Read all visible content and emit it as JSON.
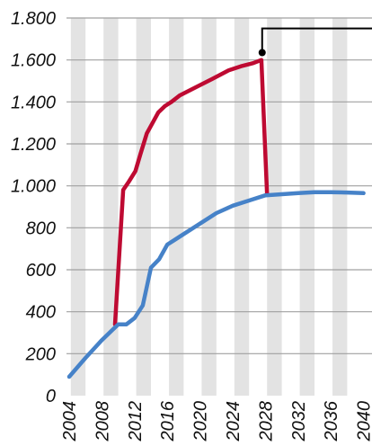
{
  "chart_data": {
    "type": "line",
    "title": "",
    "xlabel": "",
    "ylabel": "",
    "xlim": [
      2003,
      2040
    ],
    "ylim": [
      0,
      1800
    ],
    "x_ticks": [
      "2004",
      "2008",
      "2012",
      "2016",
      "2020",
      "2024",
      "2028",
      "2032",
      "2036",
      "2040"
    ],
    "y_ticks": [
      {
        "value": 0,
        "label": "0"
      },
      {
        "value": 200,
        "label": "200"
      },
      {
        "value": 400,
        "label": "400"
      },
      {
        "value": 600,
        "label": "600"
      },
      {
        "value": 800,
        "label": "800"
      },
      {
        "value": 1000,
        "label": "1.000"
      },
      {
        "value": 1200,
        "label": "1.200"
      },
      {
        "value": 1400,
        "label": "1.400"
      },
      {
        "value": 1600,
        "label": "1.600"
      },
      {
        "value": 1800,
        "label": "1.800"
      }
    ],
    "grid": "alternating vertical bands (light grey) with white gridlines",
    "colors": {
      "band": "#e3e3e3",
      "series_red": "#be0a32",
      "series_blue": "#4682c8",
      "axis_text": "#111111",
      "callout": "#000000"
    },
    "series": [
      {
        "color": "#be0a32",
        "x": [
          2009.6,
          2010.6,
          2011.3,
          2012.1,
          2012.7,
          2013.5,
          2014.2,
          2014.9,
          2015.7,
          2016.5,
          2017.5,
          2019.5,
          2021.5,
          2023.5,
          2025,
          2026.5,
          2027.5,
          2028.2
        ],
        "y": [
          340,
          980,
          1020,
          1070,
          1150,
          1250,
          1300,
          1350,
          1380,
          1400,
          1430,
          1470,
          1510,
          1550,
          1570,
          1585,
          1600,
          960
        ]
      },
      {
        "color": "#4682c8",
        "x": [
          2004,
          2006,
          2008,
          2010,
          2011,
          2012,
          2013,
          2014,
          2015,
          2016,
          2017,
          2018,
          2020,
          2022,
          2024,
          2026,
          2028,
          2030,
          2032,
          2034,
          2036,
          2038,
          2040
        ],
        "y": [
          90,
          180,
          265,
          340,
          340,
          370,
          430,
          610,
          650,
          720,
          745,
          770,
          820,
          870,
          905,
          930,
          955,
          960,
          965,
          970,
          970,
          968,
          965
        ]
      }
    ],
    "callout": {
      "x": 2027.6,
      "y": 1635,
      "line_to_y": 1750
    }
  }
}
